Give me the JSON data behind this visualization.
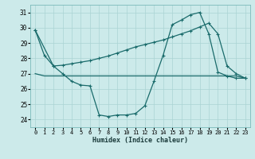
{
  "xlabel": "Humidex (Indice chaleur)",
  "bg_color": "#cceaea",
  "grid_color": "#aad4d4",
  "line_color": "#1a6b6b",
  "xlim": [
    -0.5,
    23.5
  ],
  "ylim": [
    23.5,
    31.5
  ],
  "yticks": [
    24,
    25,
    26,
    27,
    28,
    29,
    30,
    31
  ],
  "xticks": [
    0,
    1,
    2,
    3,
    4,
    5,
    6,
    7,
    8,
    9,
    10,
    11,
    12,
    13,
    14,
    15,
    16,
    17,
    18,
    19,
    20,
    21,
    22,
    23
  ],
  "line1_x": [
    0,
    1,
    2,
    3,
    4,
    5,
    6,
    7,
    8,
    9,
    10,
    11,
    12,
    13,
    14,
    15,
    16,
    17,
    18,
    19,
    20,
    21,
    22,
    23
  ],
  "line1_y": [
    29.85,
    28.2,
    27.5,
    27.0,
    26.5,
    26.25,
    26.2,
    24.3,
    24.2,
    24.3,
    24.3,
    24.4,
    24.9,
    26.5,
    28.2,
    30.2,
    30.5,
    30.85,
    31.0,
    29.6,
    27.1,
    26.85,
    26.7,
    26.7
  ],
  "line2_x": [
    0,
    1,
    2,
    3,
    4,
    5,
    6,
    7,
    8,
    9,
    10,
    11,
    12,
    13,
    14,
    15,
    16,
    17,
    18,
    19,
    20,
    21,
    22,
    23
  ],
  "line2_y": [
    27.0,
    26.85,
    26.85,
    26.85,
    26.85,
    26.85,
    26.85,
    26.85,
    26.85,
    26.85,
    26.85,
    26.85,
    26.85,
    26.85,
    26.85,
    26.85,
    26.85,
    26.85,
    26.85,
    26.85,
    26.85,
    26.85,
    26.85,
    26.7
  ],
  "line3_x": [
    0,
    2,
    3,
    4,
    5,
    6,
    7,
    8,
    9,
    10,
    11,
    12,
    13,
    14,
    15,
    16,
    17,
    18,
    19,
    20,
    21,
    22,
    23
  ],
  "line3_y": [
    29.85,
    27.5,
    27.55,
    27.65,
    27.75,
    27.85,
    28.0,
    28.15,
    28.35,
    28.55,
    28.75,
    28.9,
    29.05,
    29.2,
    29.4,
    29.6,
    29.8,
    30.05,
    30.3,
    29.6,
    27.5,
    27.0,
    26.7
  ]
}
